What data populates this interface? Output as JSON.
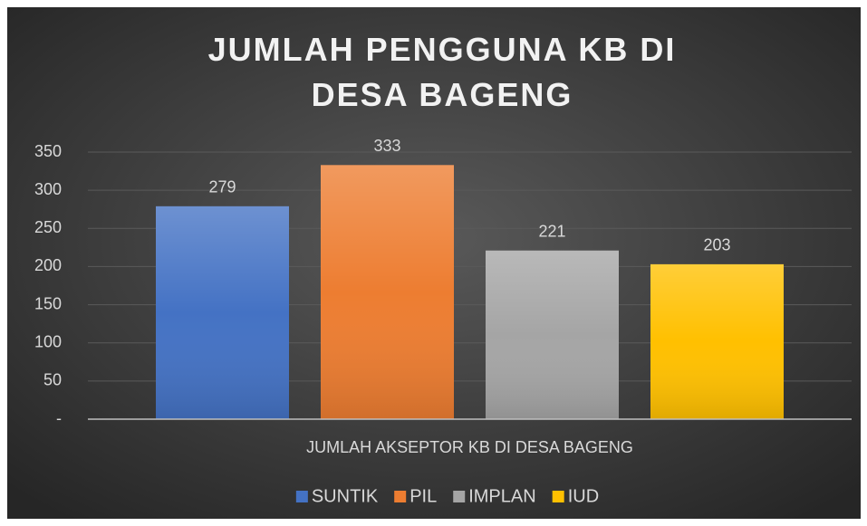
{
  "chart_data": {
    "type": "bar",
    "title": "JUMLAH PENGGUNA KB DI DESA BAGENG",
    "categories": [
      "JUMLAH AKSEPTOR KB DI DESA  BAGENG"
    ],
    "series": [
      {
        "name": "SUNTIK",
        "color": "#4472c4",
        "values": [
          279
        ]
      },
      {
        "name": "PIL",
        "color": "#ed7d31",
        "values": [
          333
        ]
      },
      {
        "name": "IMPLAN",
        "color": "#a5a5a5",
        "values": [
          221
        ]
      },
      {
        "name": "IUD",
        "color": "#ffc000",
        "values": [
          203
        ]
      }
    ],
    "ylim": [
      0,
      350
    ],
    "yticks": [
      {
        "value": 0,
        "label": "-"
      },
      50,
      100,
      150,
      200,
      250,
      300,
      350
    ],
    "grid": true,
    "legend": "bottom"
  }
}
